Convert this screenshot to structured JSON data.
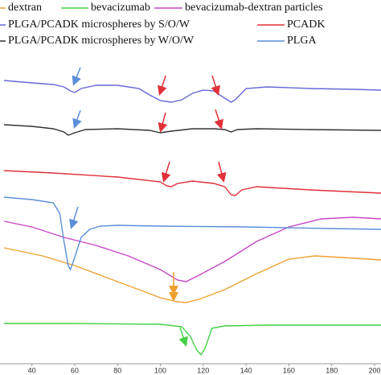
{
  "chart_data": {
    "type": "line",
    "xlim": [
      27,
      203
    ],
    "ylim": [
      0,
      390
    ],
    "xticks": [
      40,
      60,
      80,
      100,
      120,
      140,
      160,
      180,
      200
    ],
    "series": [
      {
        "name": "dextran",
        "color": "#f0a030",
        "x": [
          27,
          45,
          60,
          75,
          90,
          100,
          108,
          112,
          118,
          130,
          145,
          160,
          172,
          185,
          203
        ],
        "values": [
          142,
          132,
          120,
          105,
          90,
          80,
          75,
          74,
          78,
          90,
          110,
          128,
          132,
          130,
          127
        ]
      },
      {
        "name": "bevacizumab",
        "color": "#44d044",
        "x": [
          27,
          60,
          100,
          110,
          114,
          117,
          119,
          121,
          124,
          130,
          150,
          180,
          203
        ],
        "values": [
          48,
          48,
          47,
          44,
          32,
          15,
          9,
          18,
          42,
          45,
          46,
          46,
          46
        ]
      },
      {
        "name": "bevacizumab-dextran particles",
        "color": "#c848c8",
        "x": [
          27,
          40,
          55,
          70,
          85,
          100,
          108,
          112,
          118,
          130,
          145,
          160,
          175,
          190,
          203
        ],
        "values": [
          175,
          168,
          155,
          145,
          132,
          115,
          102,
          100,
          108,
          125,
          150,
          168,
          178,
          180,
          178
        ]
      },
      {
        "name": "PLGA/PCADK microspheres by S/O/W",
        "color": "#6868d8",
        "x": [
          27,
          40,
          50,
          55,
          58,
          60,
          63,
          70,
          80,
          90,
          95,
          100,
          105,
          110,
          115,
          120,
          125,
          130,
          133,
          135,
          140,
          150,
          170,
          190,
          203
        ],
        "values": [
          350,
          347,
          345,
          342,
          337,
          335,
          340,
          344,
          344,
          340,
          332,
          325,
          323,
          326,
          334,
          338,
          337,
          328,
          323,
          326,
          340,
          342,
          340,
          339,
          338
        ]
      },
      {
        "name": "PCADK",
        "color": "#e0303a",
        "x": [
          27,
          50,
          80,
          100,
          103,
          105,
          108,
          115,
          125,
          130,
          133,
          135,
          138,
          145,
          170,
          203
        ],
        "values": [
          238,
          235,
          230,
          224,
          219,
          218,
          222,
          225,
          222,
          218,
          208,
          207,
          214,
          218,
          214,
          210
        ]
      },
      {
        "name": "PLGA/PCADK microspheres by W/O/W",
        "color": "#333333",
        "x": [
          27,
          40,
          50,
          55,
          57,
          60,
          65,
          80,
          95,
          100,
          105,
          115,
          125,
          130,
          133,
          136,
          145,
          170,
          203
        ],
        "values": [
          295,
          293,
          290,
          286,
          282,
          285,
          289,
          290,
          288,
          285,
          287,
          290,
          290,
          289,
          286,
          289,
          290,
          289,
          288
        ]
      },
      {
        "name": "PLGA",
        "color": "#5b8fd8",
        "x": [
          27,
          40,
          50,
          53,
          55,
          57,
          58,
          60,
          63,
          67,
          72,
          80,
          100,
          140,
          180,
          203
        ],
        "values": [
          205,
          202,
          198,
          185,
          150,
          120,
          115,
          130,
          155,
          165,
          169,
          170,
          169,
          168,
          166,
          165
        ]
      }
    ]
  }
}
